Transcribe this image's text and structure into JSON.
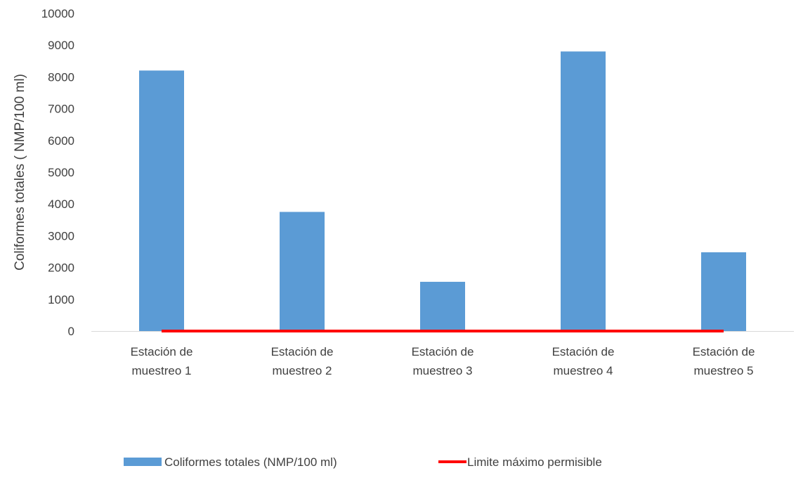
{
  "chart_data": {
    "type": "bar",
    "title": "",
    "xlabel": "",
    "ylabel": "Coliformes totales ( NMP/100 ml)",
    "ylim": [
      0,
      10000
    ],
    "yticks": [
      0,
      1000,
      2000,
      3000,
      4000,
      5000,
      6000,
      7000,
      8000,
      9000,
      10000
    ],
    "categories": [
      [
        "Estación de",
        "muestreo 1"
      ],
      [
        "Estación de",
        "muestreo 2"
      ],
      [
        "Estación de",
        "muestreo 3"
      ],
      [
        "Estación de",
        "muestreo 4"
      ],
      [
        "Estación de",
        "muestreo 5"
      ]
    ],
    "series": [
      {
        "name": "Coliformes totales (NMP/100 ml)",
        "type": "bar",
        "color": "#5b9bd5",
        "values": [
          8200,
          3750,
          1550,
          8800,
          2480
        ]
      },
      {
        "name": "Limite máximo permisible",
        "type": "line",
        "color": "#ff0000",
        "values": [
          0,
          0,
          0,
          0,
          0
        ]
      }
    ],
    "grid": false,
    "legend": "bottom"
  }
}
